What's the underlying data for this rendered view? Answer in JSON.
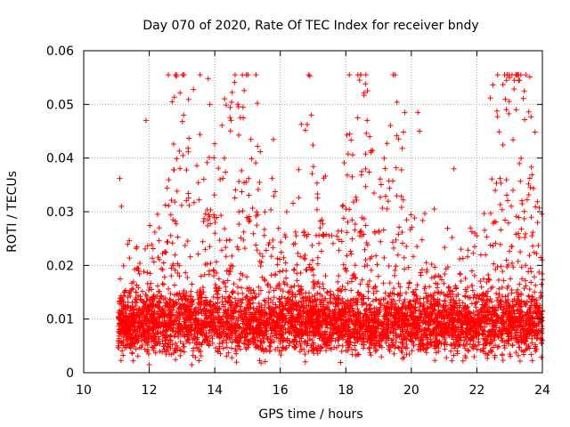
{
  "chart_data": {
    "type": "scatter",
    "title": "Day 070 of 2020, Rate Of TEC Index for receiver bndy",
    "xlabel": "GPS time / hours",
    "ylabel": "ROTI / TECUs",
    "xlim": [
      10,
      24
    ],
    "ylim": [
      0,
      0.06
    ],
    "x_ticks": [
      10,
      12,
      14,
      16,
      18,
      20,
      22,
      24
    ],
    "y_ticks": [
      0,
      0.01,
      0.02,
      0.03,
      0.04,
      0.05,
      0.06
    ],
    "x_tick_labels": [
      "10",
      "12",
      "14",
      "16",
      "18",
      "20",
      "22",
      "24"
    ],
    "y_tick_labels": [
      "0",
      "0.01",
      "0.02",
      "0.03",
      "0.04",
      "0.05",
      "0.06"
    ],
    "grid": true,
    "marker": "+",
    "color": "#ff0000",
    "series": [
      {
        "name": "ROTI",
        "x_range": [
          11.05,
          24.0
        ],
        "typical_range": [
          0.003,
          0.02
        ],
        "sample_points": [
          {
            "x": 11.1,
            "y": 0.0362
          },
          {
            "x": 11.15,
            "y": 0.031
          },
          {
            "x": 11.9,
            "y": 0.047
          },
          {
            "x": 12.7,
            "y": 0.0505
          },
          {
            "x": 13.05,
            "y": 0.048
          },
          {
            "x": 13.3,
            "y": 0.0015
          },
          {
            "x": 13.8,
            "y": 0.0548
          },
          {
            "x": 13.85,
            "y": 0.05
          },
          {
            "x": 14.5,
            "y": 0.047
          },
          {
            "x": 15.3,
            "y": 0.0502
          },
          {
            "x": 16.9,
            "y": 0.0553
          },
          {
            "x": 16.95,
            "y": 0.048
          },
          {
            "x": 18.6,
            "y": 0.0538
          },
          {
            "x": 18.65,
            "y": 0.047
          },
          {
            "x": 19.8,
            "y": 0.0485
          },
          {
            "x": 20.2,
            "y": 0.0485
          },
          {
            "x": 20.25,
            "y": 0.045
          },
          {
            "x": 21.3,
            "y": 0.038
          },
          {
            "x": 23.0,
            "y": 0.055
          },
          {
            "x": 23.3,
            "y": 0.0545
          },
          {
            "x": 23.2,
            "y": 0.049
          },
          {
            "x": 12.0,
            "y": 0.0015
          }
        ]
      }
    ]
  }
}
